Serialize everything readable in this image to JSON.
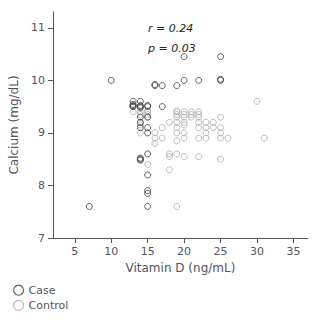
{
  "chart_data": {
    "type": "scatter",
    "title": "",
    "xlabel": "Vitamin D (ng/mL)",
    "ylabel": "Calcium (mg/dL)",
    "xlim": [
      2,
      37
    ],
    "ylim": [
      7,
      11.3
    ],
    "xticks": [
      5,
      10,
      15,
      20,
      25,
      30,
      35
    ],
    "yticks": [
      7,
      8,
      9,
      10,
      11
    ],
    "grid": false,
    "annotations": [
      "r = 0.24",
      "p = 0.03"
    ],
    "series": [
      {
        "name": "Case",
        "color": "#3a3a3a",
        "values": [
          [
            7,
            7.6
          ],
          [
            10,
            10.0
          ],
          [
            13,
            9.5
          ],
          [
            13,
            9.52
          ],
          [
            13,
            9.6
          ],
          [
            13,
            9.54
          ],
          [
            14,
            9.5
          ],
          [
            14,
            9.52
          ],
          [
            14,
            9.48
          ],
          [
            14,
            9.6
          ],
          [
            14,
            9.3
          ],
          [
            14,
            9.2
          ],
          [
            14,
            9.1
          ],
          [
            14,
            8.5
          ],
          [
            14,
            8.52
          ],
          [
            14,
            8.48
          ],
          [
            15,
            9.5
          ],
          [
            15,
            9.52
          ],
          [
            15,
            9.3
          ],
          [
            15,
            9.1
          ],
          [
            15,
            9.0
          ],
          [
            15,
            8.6
          ],
          [
            15,
            8.2
          ],
          [
            15,
            7.9
          ],
          [
            15,
            7.85
          ],
          [
            15,
            7.6
          ],
          [
            16,
            9.9
          ],
          [
            16,
            9.92
          ],
          [
            17,
            9.9
          ],
          [
            17,
            9.5
          ],
          [
            19,
            9.9
          ],
          [
            20,
            10.45
          ],
          [
            20,
            10.0
          ],
          [
            22,
            10.0
          ],
          [
            25,
            10.45
          ],
          [
            25,
            10.0
          ],
          [
            25,
            10.02
          ]
        ]
      },
      {
        "name": "Control",
        "color": "#aaaaaa",
        "values": [
          [
            13,
            9.5
          ],
          [
            13,
            9.5
          ],
          [
            13,
            9.4
          ],
          [
            14,
            9.4
          ],
          [
            14,
            9.35
          ],
          [
            14,
            9.2
          ],
          [
            14,
            9.15
          ],
          [
            14,
            9.0
          ],
          [
            15,
            9.4
          ],
          [
            15,
            9.42
          ],
          [
            15,
            9.35
          ],
          [
            15,
            9.3
          ],
          [
            15,
            8.4
          ],
          [
            16,
            9.0
          ],
          [
            16,
            8.9
          ],
          [
            16,
            8.8
          ],
          [
            17,
            9.1
          ],
          [
            17,
            8.9
          ],
          [
            18,
            9.2
          ],
          [
            18,
            8.6
          ],
          [
            18,
            8.55
          ],
          [
            18,
            8.3
          ],
          [
            19,
            9.4
          ],
          [
            19,
            9.42
          ],
          [
            19,
            9.35
          ],
          [
            19,
            9.3
          ],
          [
            19,
            9.2
          ],
          [
            19,
            9.1
          ],
          [
            19,
            9.0
          ],
          [
            19,
            8.85
          ],
          [
            19,
            8.6
          ],
          [
            19,
            7.6
          ],
          [
            20,
            9.4
          ],
          [
            20,
            9.35
          ],
          [
            20,
            9.3
          ],
          [
            20,
            9.2
          ],
          [
            20,
            9.15
          ],
          [
            20,
            9.0
          ],
          [
            20,
            8.9
          ],
          [
            20,
            8.55
          ],
          [
            21,
            9.4
          ],
          [
            21,
            9.35
          ],
          [
            21,
            9.3
          ],
          [
            22,
            9.4
          ],
          [
            22,
            9.35
          ],
          [
            22,
            9.3
          ],
          [
            22,
            9.2
          ],
          [
            22,
            9.1
          ],
          [
            22,
            8.9
          ],
          [
            22,
            8.55
          ],
          [
            23,
            9.2
          ],
          [
            23,
            9.1
          ],
          [
            23,
            9.0
          ],
          [
            23,
            8.9
          ],
          [
            24,
            9.2
          ],
          [
            24,
            9.1
          ],
          [
            25,
            9.3
          ],
          [
            25,
            9.1
          ],
          [
            25,
            9.0
          ],
          [
            25,
            8.9
          ],
          [
            25,
            8.5
          ],
          [
            26,
            8.9
          ],
          [
            30,
            9.6
          ],
          [
            31,
            8.9
          ]
        ]
      }
    ]
  }
}
